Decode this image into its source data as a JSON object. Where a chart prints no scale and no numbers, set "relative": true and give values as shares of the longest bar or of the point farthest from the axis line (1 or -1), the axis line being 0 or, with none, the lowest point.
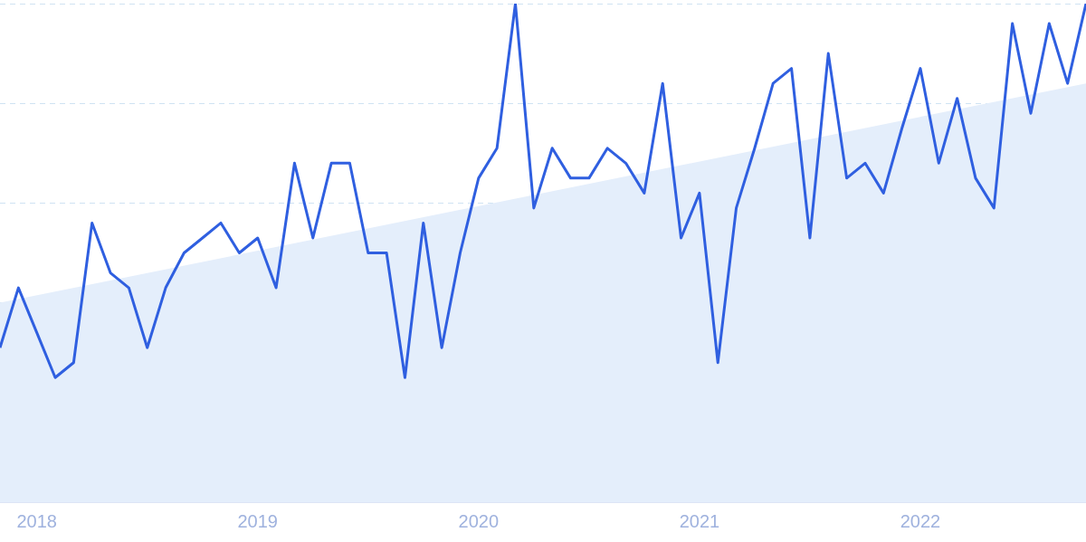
{
  "chart_data": {
    "type": "line",
    "relative": true,
    "x": [
      "2017-11",
      "2017-12",
      "2018-01",
      "2018-02",
      "2018-03",
      "2018-04",
      "2018-05",
      "2018-06",
      "2018-07",
      "2018-08",
      "2018-09",
      "2018-10",
      "2018-11",
      "2018-12",
      "2019-01",
      "2019-02",
      "2019-03",
      "2019-04",
      "2019-05",
      "2019-06",
      "2019-07",
      "2019-08",
      "2019-09",
      "2019-10",
      "2019-11",
      "2019-12",
      "2020-01",
      "2020-02",
      "2020-03",
      "2020-04",
      "2020-05",
      "2020-06",
      "2020-07",
      "2020-08",
      "2020-09",
      "2020-10",
      "2020-11",
      "2020-12",
      "2021-01",
      "2021-02",
      "2021-03",
      "2021-04",
      "2021-05",
      "2021-06",
      "2021-07",
      "2021-08",
      "2021-09",
      "2021-10",
      "2021-11",
      "2021-12",
      "2022-01",
      "2022-02",
      "2022-03",
      "2022-04",
      "2022-05",
      "2022-06",
      "2022-07",
      "2022-08",
      "2022-09",
      "2022-10"
    ],
    "xlim": [
      "2017-11",
      "2022-10"
    ],
    "xticks": [
      {
        "value": "2018-01",
        "label": "2018"
      },
      {
        "value": "2019-01",
        "label": "2019"
      },
      {
        "value": "2020-01",
        "label": "2020"
      },
      {
        "value": "2021-01",
        "label": "2021"
      },
      {
        "value": "2022-01",
        "label": "2022"
      }
    ],
    "series": [
      {
        "type": "area",
        "color": "#e4eefb",
        "x": [
          "2017-11",
          "2022-10"
        ],
        "values": [
          0.4,
          0.84
        ]
      },
      {
        "color": "#2f5fe0",
        "values": [
          0.31,
          0.43,
          0.34,
          0.25,
          0.28,
          0.56,
          0.46,
          0.43,
          0.31,
          0.43,
          0.5,
          0.53,
          0.56,
          0.5,
          0.53,
          0.43,
          0.68,
          0.53,
          0.68,
          0.68,
          0.5,
          0.5,
          0.25,
          0.56,
          0.31,
          0.5,
          0.65,
          0.71,
          1,
          0.59,
          0.71,
          0.65,
          0.65,
          0.71,
          0.68,
          0.62,
          0.84,
          0.53,
          0.62,
          0.28,
          0.59,
          0.71,
          0.84,
          0.87,
          0.53,
          0.9,
          0.65,
          0.68,
          0.62,
          0.75,
          0.87,
          0.68,
          0.81,
          0.65,
          0.59,
          0.96,
          0.78,
          0.96,
          0.84,
          1
        ]
      }
    ],
    "grid": "y",
    "line_style": "solid",
    "marker": "none",
    "legend": false
  }
}
